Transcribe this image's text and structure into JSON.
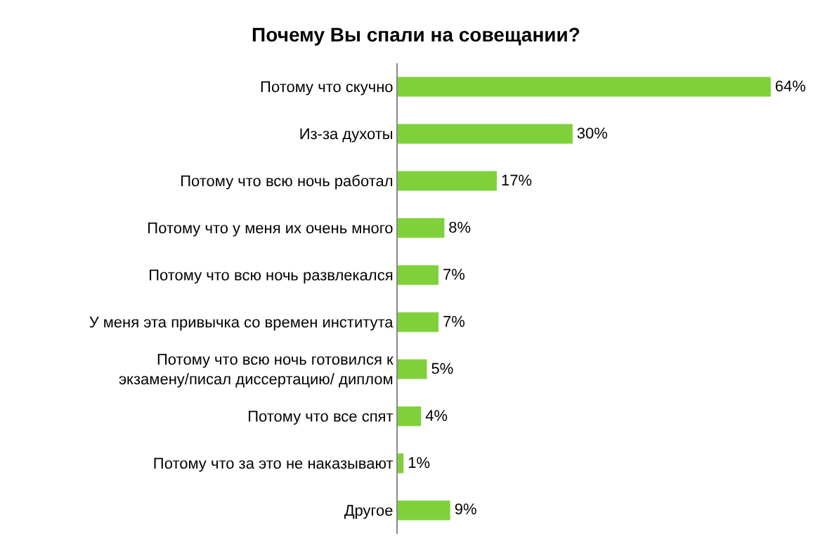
{
  "chart_data": {
    "type": "bar",
    "orientation": "horizontal",
    "title": "Почему Вы спали на совещании?",
    "categories": [
      "Потому что скучно",
      "Из-за духоты",
      "Потому что всю ночь работал",
      "Потому что у меня их очень много",
      "Потому что всю ночь развлекался",
      "У меня эта привычка со времен института",
      "Потому что всю ночь готовился к экзамену/писал диссертацию/ диплом",
      "Потому что все спят",
      "Потому что за это не наказывают",
      "Другое"
    ],
    "values": [
      64,
      30,
      17,
      8,
      7,
      7,
      5,
      4,
      1,
      9
    ],
    "value_labels": [
      "64%",
      "30%",
      "17%",
      "8%",
      "7%",
      "7%",
      "5%",
      "4%",
      "1%",
      "9%"
    ],
    "color": "#7fd13b",
    "grid": false,
    "legend": false
  }
}
